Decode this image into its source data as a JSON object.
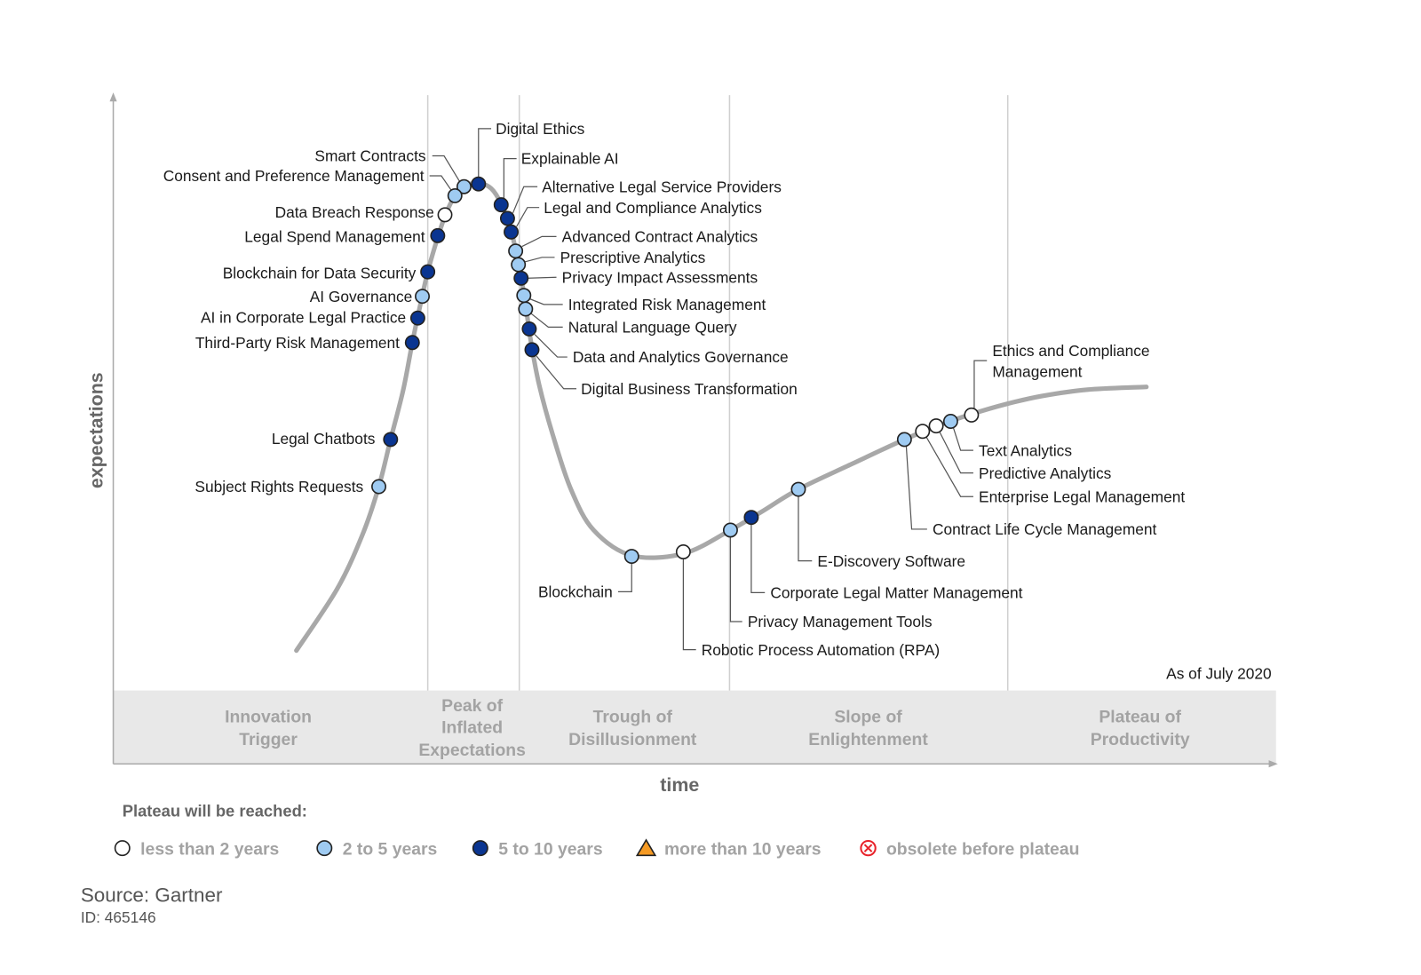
{
  "chart_data": {
    "type": "line",
    "subtype": "hype-cycle",
    "ylabel": "expectations",
    "xlabel": "time",
    "annotation": "As of July 2020",
    "phases": [
      "Innovation Trigger",
      "Peak of Inflated Expectations",
      "Trough of Disillusionment",
      "Slope of Enlightenment",
      "Plateau of Productivity"
    ],
    "phase_lines": [
      [
        "Innovation",
        "Trigger"
      ],
      [
        "Peak of",
        "Inflated",
        "Expectations"
      ],
      [
        "Trough of",
        "Disillusionment"
      ],
      [
        "Slope of",
        "Enlightenment"
      ],
      [
        "Plateau of",
        "Productivity"
      ]
    ],
    "legend": {
      "title": "Plateau will be reached:",
      "entries": [
        {
          "key": "lt2",
          "label": "less than 2 years",
          "fill": "#ffffff",
          "shape": "circle"
        },
        {
          "key": "2to5",
          "label": "2 to 5 years",
          "fill": "#9fcbf2",
          "shape": "circle"
        },
        {
          "key": "5to10",
          "label": "5 to 10 years",
          "fill": "#0a3591",
          "shape": "circle"
        },
        {
          "key": "gt10",
          "label": "more than 10 years",
          "fill": "#f59a23",
          "shape": "triangle"
        },
        {
          "key": "obsolete",
          "label": "obsolete before plateau",
          "fill": "#e8232b",
          "shape": "circle-x"
        }
      ]
    },
    "items": [
      {
        "name": "Smart Contracts",
        "plateau": "2to5"
      },
      {
        "name": "Consent and Preference Management",
        "plateau": "2to5"
      },
      {
        "name": "Data Breach Response",
        "plateau": "lt2"
      },
      {
        "name": "Legal Spend Management",
        "plateau": "5to10"
      },
      {
        "name": "Blockchain for Data Security",
        "plateau": "5to10"
      },
      {
        "name": "AI Governance",
        "plateau": "2to5"
      },
      {
        "name": "AI in Corporate Legal Practice",
        "plateau": "5to10"
      },
      {
        "name": "Third-Party Risk Management",
        "plateau": "5to10"
      },
      {
        "name": "Legal Chatbots",
        "plateau": "5to10"
      },
      {
        "name": "Subject Rights Requests",
        "plateau": "2to5"
      },
      {
        "name": "Digital Ethics",
        "plateau": "5to10"
      },
      {
        "name": "Explainable AI",
        "plateau": "5to10"
      },
      {
        "name": "Alternative Legal Service Providers",
        "plateau": "5to10"
      },
      {
        "name": "Legal and Compliance Analytics",
        "plateau": "5to10"
      },
      {
        "name": "Advanced Contract Analytics",
        "plateau": "2to5"
      },
      {
        "name": "Prescriptive Analytics",
        "plateau": "2to5"
      },
      {
        "name": "Privacy Impact Assessments",
        "plateau": "5to10"
      },
      {
        "name": "Integrated Risk Management",
        "plateau": "2to5"
      },
      {
        "name": "Natural Language Query",
        "plateau": "2to5"
      },
      {
        "name": "Data and Analytics Governance",
        "plateau": "5to10"
      },
      {
        "name": "Digital Business Transformation",
        "plateau": "5to10"
      },
      {
        "name": "Blockchain",
        "plateau": "2to5"
      },
      {
        "name": "Robotic Process Automation (RPA)",
        "plateau": "lt2"
      },
      {
        "name": "Privacy Management Tools",
        "plateau": "2to5"
      },
      {
        "name": "Corporate Legal Matter Management",
        "plateau": "5to10"
      },
      {
        "name": "E-Discovery Software",
        "plateau": "2to5"
      },
      {
        "name": "Contract Life Cycle Management",
        "plateau": "2to5"
      },
      {
        "name": "Enterprise Legal Management",
        "plateau": "lt2"
      },
      {
        "name": "Predictive Analytics",
        "plateau": "lt2"
      },
      {
        "name": "Text Analytics",
        "plateau": "2to5"
      },
      {
        "name": "Ethics and Compliance Management",
        "plateau": "lt2",
        "lines": [
          "Ethics and Compliance",
          "Management"
        ]
      }
    ]
  },
  "source": "Source: Gartner",
  "id": "ID: 465146"
}
